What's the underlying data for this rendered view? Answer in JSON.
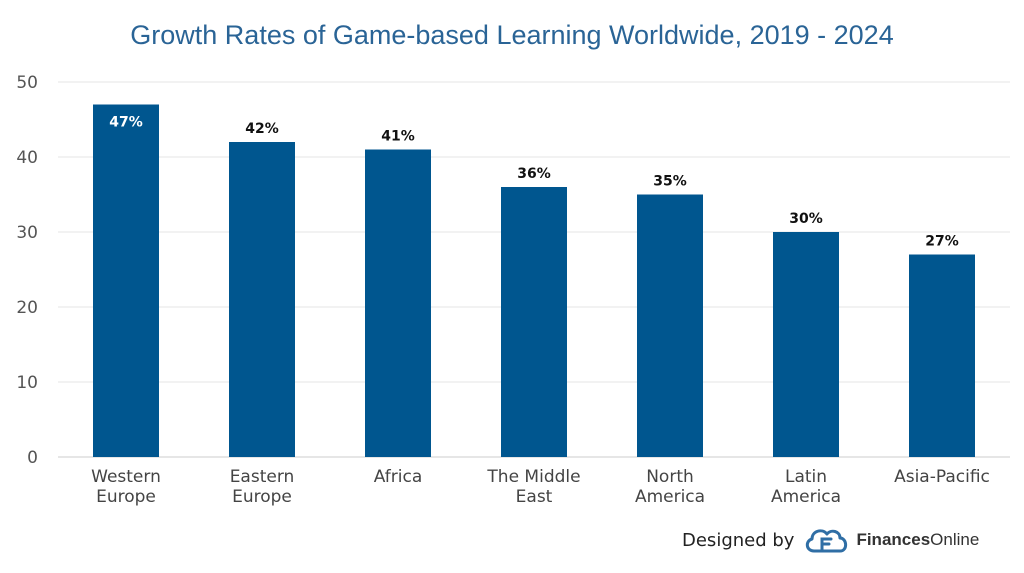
{
  "chart_data": {
    "type": "bar",
    "title": "Growth Rates of Game-based Learning Worldwide, 2019 - 2024",
    "categories": [
      [
        "Western",
        "Europe"
      ],
      [
        "Eastern",
        "Europe"
      ],
      [
        "Africa"
      ],
      [
        "The Middle",
        "East"
      ],
      [
        "North",
        "America"
      ],
      [
        "Latin",
        "America"
      ],
      [
        "Asia-Pacific"
      ]
    ],
    "values": [
      47,
      42,
      41,
      36,
      35,
      30,
      27
    ],
    "data_labels": [
      "47%",
      "42%",
      "41%",
      "36%",
      "35%",
      "30%",
      "27%"
    ],
    "y_ticks": [
      "0",
      "10",
      "20",
      "30",
      "40",
      "50"
    ],
    "ylim": [
      0,
      50
    ],
    "grid": true,
    "bar_color": "#00568f"
  },
  "credit": {
    "prefix": "Designed by",
    "brand_bold": "Finances",
    "brand_regular": "Online",
    "logo_icon": "cloud-f-logo-icon"
  }
}
